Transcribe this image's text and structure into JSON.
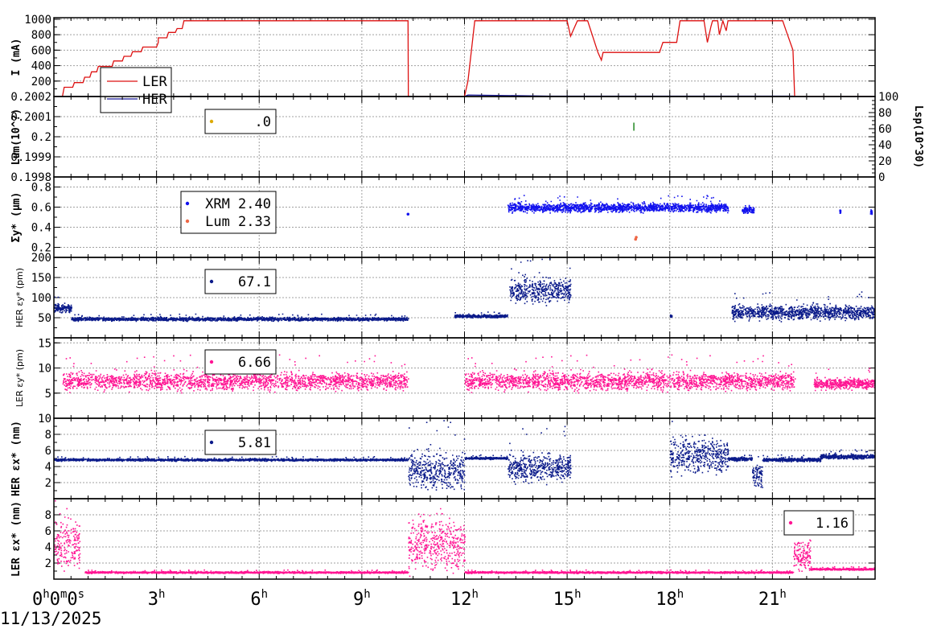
{
  "x_axis": {
    "unit": "hours",
    "range": [
      0,
      24
    ],
    "ticks": [
      {
        "v": 0,
        "label": "0",
        "sup": "h",
        "label2": "0",
        "sup2": "m",
        "label3": "0",
        "sup3": "s"
      },
      {
        "v": 3,
        "label": "3",
        "sup": "h"
      },
      {
        "v": 6,
        "label": "6",
        "sup": "h"
      },
      {
        "v": 9,
        "label": "9",
        "sup": "h"
      },
      {
        "v": 12,
        "label": "12",
        "sup": "h"
      },
      {
        "v": 15,
        "label": "15",
        "sup": "h"
      },
      {
        "v": 18,
        "label": "18",
        "sup": "h"
      },
      {
        "v": 21,
        "label": "21",
        "sup": "h"
      }
    ],
    "date": "11/13/2025"
  },
  "colors": {
    "ler": "#dd1111",
    "her": "#1a1a99",
    "xrm": "#1111ee",
    "lum_pt": "#ee6644",
    "lum_leg": "#ddaa00",
    "pink": "#ff1493",
    "navy": "#0a1a8a",
    "grid": "#a0a0a0"
  },
  "chart_data": [
    {
      "type": "line",
      "ylabel": "I (mA)",
      "ylim": [
        0,
        1020
      ],
      "yticks": [
        "200",
        "400",
        "600",
        "800",
        "1000"
      ],
      "legend": {
        "position": "bottom-left",
        "entries": [
          "LER",
          "HER"
        ]
      },
      "series": [
        {
          "name": "LER",
          "points": [
            [
              0,
              0
            ],
            [
              0.25,
              0
            ],
            [
              0.3,
              120
            ],
            [
              0.55,
              120
            ],
            [
              0.6,
              180
            ],
            [
              0.85,
              180
            ],
            [
              0.9,
              250
            ],
            [
              1.05,
              250
            ],
            [
              1.1,
              320
            ],
            [
              1.25,
              320
            ],
            [
              1.3,
              390
            ],
            [
              1.7,
              390
            ],
            [
              1.75,
              460
            ],
            [
              2.0,
              460
            ],
            [
              2.05,
              520
            ],
            [
              2.25,
              520
            ],
            [
              2.3,
              580
            ],
            [
              2.55,
              580
            ],
            [
              2.6,
              640
            ],
            [
              3.0,
              640
            ],
            [
              3.05,
              700
            ],
            [
              3.05,
              760
            ],
            [
              3.3,
              760
            ],
            [
              3.35,
              830
            ],
            [
              3.55,
              830
            ],
            [
              3.6,
              880
            ],
            [
              3.75,
              880
            ],
            [
              3.8,
              980
            ],
            [
              10.35,
              980
            ],
            [
              10.36,
              0
            ],
            [
              12.0,
              0
            ],
            [
              12.1,
              200
            ],
            [
              12.3,
              980
            ],
            [
              15.0,
              980
            ],
            [
              15.1,
              780
            ],
            [
              15.2,
              880
            ],
            [
              15.3,
              980
            ],
            [
              15.6,
              980
            ],
            [
              15.9,
              570
            ],
            [
              16.0,
              470
            ],
            [
              16.05,
              570
            ],
            [
              17.7,
              570
            ],
            [
              17.8,
              700
            ],
            [
              18.2,
              700
            ],
            [
              18.3,
              980
            ],
            [
              19.0,
              980
            ],
            [
              19.1,
              700
            ],
            [
              19.2,
              900
            ],
            [
              19.25,
              980
            ],
            [
              19.4,
              980
            ],
            [
              19.45,
              800
            ],
            [
              19.55,
              980
            ],
            [
              19.65,
              850
            ],
            [
              19.7,
              980
            ],
            [
              21.3,
              980
            ],
            [
              21.4,
              850
            ],
            [
              21.6,
              600
            ],
            [
              21.65,
              0
            ],
            [
              24,
              0
            ]
          ]
        },
        {
          "name": "HER",
          "points": [
            [
              0,
              0
            ],
            [
              10.35,
              0
            ],
            [
              12.0,
              0
            ],
            [
              12.1,
              20
            ],
            [
              14.5,
              5
            ],
            [
              21.6,
              5
            ],
            [
              21.65,
              0
            ],
            [
              24,
              0
            ]
          ]
        }
      ]
    },
    {
      "type": "scatter",
      "ylabel": "Lum(10^?)",
      "ylim": [
        0.1998,
        0.2002
      ],
      "yticks": [
        "0.1998",
        "0.1999",
        "0.2",
        "0.2001",
        "0.2002"
      ],
      "y2label": "Lsp(10^30)",
      "y2lim": [
        0,
        100
      ],
      "y2ticks": [
        "0",
        "20",
        "40",
        "60",
        "80",
        "100"
      ],
      "legend": {
        "position": "top-left",
        "entries": [
          ".0"
        ]
      },
      "series": [
        {
          "name": ".0",
          "points": [
            [
              16.95,
              0.20005
            ]
          ]
        }
      ]
    },
    {
      "type": "scatter",
      "ylabel": "Σy* (μm)",
      "ylim": [
        0.1,
        0.9
      ],
      "yticks": [
        "0.2",
        "0.4",
        "0.6",
        "0.8"
      ],
      "legend": {
        "position": "top-left",
        "entries": [
          "XRM 2.40",
          "Lum 2.33"
        ]
      },
      "series": [
        {
          "name": "XRM 2.40",
          "segments": [
            [
              13.25,
              19.7,
              0.6,
              0.06
            ],
            [
              20.1,
              20.45,
              0.58,
              0.05
            ],
            [
              22.95,
              22.98,
              0.56,
              0.03
            ],
            [
              23.85,
              23.9,
              0.56,
              0.03
            ]
          ],
          "points": [
            [
              10.35,
              0.53
            ]
          ]
        },
        {
          "name": "Lum 2.33",
          "points": [
            [
              17.0,
              0.28
            ],
            [
              17.02,
              0.3
            ]
          ]
        }
      ]
    },
    {
      "type": "scatter",
      "ylabel": "HER εy* (pm)",
      "ylim": [
        0,
        200
      ],
      "yticks": [
        "50",
        "100",
        "150",
        "200"
      ],
      "legend": {
        "position": "top-left",
        "entries": [
          "67.1"
        ]
      },
      "series": [
        {
          "name": "67.1",
          "segments": [
            [
              0,
              0.5,
              75,
              15
            ],
            [
              0.5,
              10.35,
              48,
              6
            ],
            [
              11.7,
              13.25,
              55,
              5
            ],
            [
              13.3,
              15.1,
              120,
              45
            ],
            [
              18.0,
              18.05,
              55,
              5
            ],
            [
              19.8,
              24,
              65,
              25
            ]
          ]
        }
      ]
    },
    {
      "type": "scatter",
      "ylabel": "LER εy* (pm)",
      "ylim": [
        0,
        16
      ],
      "yticks": [
        "5",
        "10",
        "15"
      ],
      "legend": {
        "position": "top-left",
        "entries": [
          "6.66"
        ]
      },
      "series": [
        {
          "name": "6.66",
          "segments": [
            [
              0.25,
              10.35,
              7.5,
              2.5
            ],
            [
              12.0,
              21.65,
              7.5,
              2.5
            ],
            [
              22.2,
              24,
              7.0,
              1.5
            ]
          ]
        }
      ]
    },
    {
      "type": "scatter",
      "ylabel": "HER εx* (nm)",
      "ylim": [
        0,
        10
      ],
      "yticks": [
        "2",
        "4",
        "6",
        "8",
        "10"
      ],
      "legend": {
        "position": "top-left",
        "entries": [
          "5.81"
        ]
      },
      "series": [
        {
          "name": "5.81",
          "segments": [
            [
              0,
              10.35,
              4.9,
              0.2
            ],
            [
              10.35,
              12.0,
              3.5,
              3
            ],
            [
              12.0,
              13.25,
              5.1,
              0.2
            ],
            [
              13.25,
              15.1,
              4.0,
              2.5
            ],
            [
              18.0,
              19.7,
              5.5,
              3
            ],
            [
              19.7,
              20.4,
              5.0,
              0.3
            ],
            [
              20.4,
              20.7,
              3.0,
              2.5
            ],
            [
              20.7,
              22.4,
              4.9,
              0.3
            ],
            [
              22.4,
              24,
              5.3,
              0.4
            ]
          ]
        }
      ]
    },
    {
      "type": "scatter",
      "ylabel": "LER εx* (nm)",
      "ylim": [
        0,
        10
      ],
      "yticks": [
        "2",
        "4",
        "6",
        "8"
      ],
      "legend": {
        "position": "top-right",
        "entries": [
          "1.16"
        ]
      },
      "series": [
        {
          "name": "1.16",
          "segments": [
            [
              0,
              0.75,
              4.5,
              4.5
            ],
            [
              0.9,
              10.35,
              0.9,
              0.15
            ],
            [
              10.35,
              12.0,
              4.5,
              4.5
            ],
            [
              12.0,
              21.6,
              0.9,
              0.15
            ],
            [
              21.6,
              22.1,
              3.0,
              2.5
            ],
            [
              22.1,
              24,
              1.3,
              0.15
            ]
          ]
        }
      ]
    }
  ]
}
